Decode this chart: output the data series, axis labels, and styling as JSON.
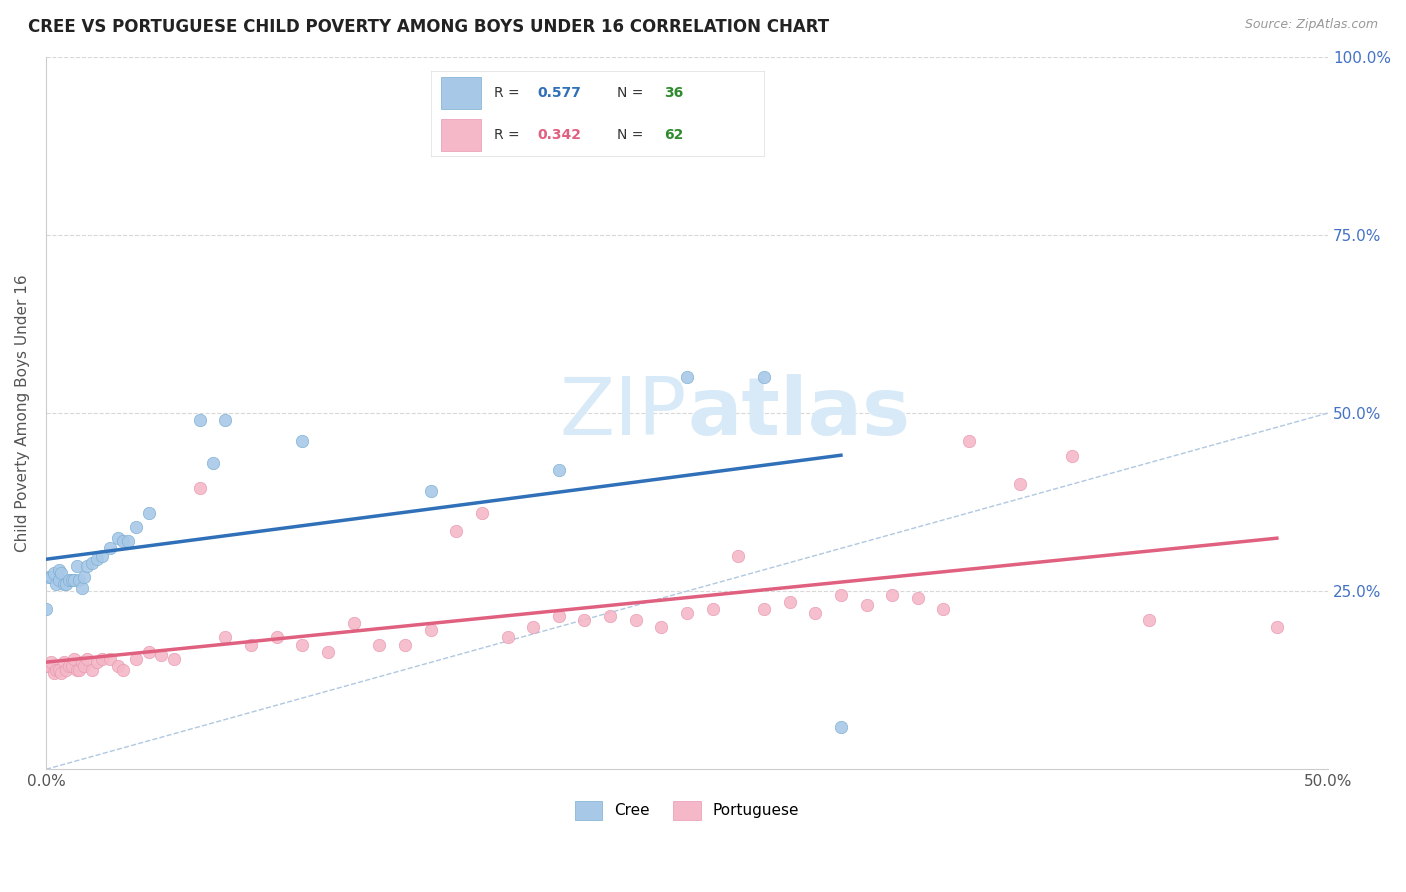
{
  "title": "CREE VS PORTUGUESE CHILD POVERTY AMONG BOYS UNDER 16 CORRELATION CHART",
  "source": "Source: ZipAtlas.com",
  "ylabel": "Child Poverty Among Boys Under 16",
  "xlim": [
    0.0,
    0.5
  ],
  "ylim": [
    0.0,
    1.0
  ],
  "cree_R": 0.577,
  "cree_N": 36,
  "portuguese_R": 0.342,
  "portuguese_N": 62,
  "cree_color": "#a8c8e8",
  "cree_edge_color": "#7aaed0",
  "portuguese_color": "#f4b8c8",
  "portuguese_edge_color": "#e898b0",
  "cree_line_color": "#3070b8",
  "portuguese_line_color": "#e06080",
  "diagonal_color": "#b0c8e0",
  "grid_color": "#d8d8d8",
  "background_color": "#ffffff",
  "right_tick_color": "#4472c4",
  "watermark_color": "#d8eaf8",
  "cree_x": [
    0.0,
    0.001,
    0.002,
    0.003,
    0.004,
    0.005,
    0.005,
    0.006,
    0.007,
    0.008,
    0.009,
    0.01,
    0.011,
    0.012,
    0.013,
    0.014,
    0.015,
    0.016,
    0.018,
    0.02,
    0.022,
    0.025,
    0.028,
    0.03,
    0.032,
    0.035,
    0.04,
    0.06,
    0.065,
    0.07,
    0.1,
    0.15,
    0.2,
    0.25,
    0.28,
    0.31
  ],
  "cree_y": [
    0.225,
    0.27,
    0.27,
    0.275,
    0.26,
    0.265,
    0.28,
    0.275,
    0.26,
    0.26,
    0.265,
    0.265,
    0.265,
    0.285,
    0.265,
    0.255,
    0.27,
    0.285,
    0.29,
    0.295,
    0.3,
    0.31,
    0.325,
    0.32,
    0.32,
    0.34,
    0.36,
    0.49,
    0.43,
    0.49,
    0.46,
    0.39,
    0.42,
    0.55,
    0.55,
    0.06
  ],
  "portuguese_x": [
    0.0,
    0.001,
    0.002,
    0.003,
    0.004,
    0.005,
    0.006,
    0.007,
    0.008,
    0.009,
    0.01,
    0.011,
    0.012,
    0.013,
    0.014,
    0.015,
    0.016,
    0.018,
    0.02,
    0.022,
    0.025,
    0.028,
    0.03,
    0.035,
    0.04,
    0.045,
    0.05,
    0.06,
    0.07,
    0.08,
    0.09,
    0.1,
    0.11,
    0.12,
    0.13,
    0.14,
    0.15,
    0.16,
    0.17,
    0.18,
    0.19,
    0.2,
    0.21,
    0.22,
    0.23,
    0.24,
    0.25,
    0.26,
    0.27,
    0.28,
    0.29,
    0.3,
    0.31,
    0.32,
    0.33,
    0.34,
    0.35,
    0.36,
    0.38,
    0.4,
    0.43,
    0.48
  ],
  "portuguese_y": [
    0.145,
    0.145,
    0.15,
    0.135,
    0.14,
    0.14,
    0.135,
    0.15,
    0.14,
    0.145,
    0.145,
    0.155,
    0.14,
    0.14,
    0.15,
    0.145,
    0.155,
    0.14,
    0.15,
    0.155,
    0.155,
    0.145,
    0.14,
    0.155,
    0.165,
    0.16,
    0.155,
    0.395,
    0.185,
    0.175,
    0.185,
    0.175,
    0.165,
    0.205,
    0.175,
    0.175,
    0.195,
    0.335,
    0.36,
    0.185,
    0.2,
    0.215,
    0.21,
    0.215,
    0.21,
    0.2,
    0.22,
    0.225,
    0.3,
    0.225,
    0.235,
    0.22,
    0.245,
    0.23,
    0.245,
    0.24,
    0.225,
    0.46,
    0.4,
    0.44,
    0.21,
    0.2
  ]
}
